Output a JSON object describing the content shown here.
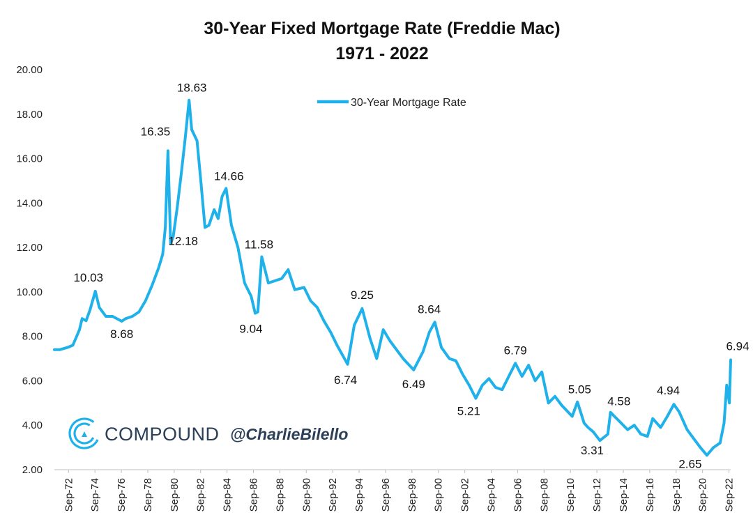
{
  "chart_data": {
    "type": "line",
    "title": "30-Year Fixed Mortgage Rate (Freddie Mac)",
    "subtitle": "1971 - 2022",
    "xlabel": "",
    "ylabel": "",
    "ylim": [
      2,
      20
    ],
    "xlim": [
      1971.6,
      2022.8
    ],
    "y_ticks": [
      "20.00",
      "18.00",
      "16.00",
      "14.00",
      "12.00",
      "10.00",
      "8.00",
      "6.00",
      "4.00",
      "2.00"
    ],
    "x_ticks": [
      "Sep-72",
      "Sep-74",
      "Sep-76",
      "Sep-78",
      "Sep-80",
      "Sep-82",
      "Sep-84",
      "Sep-86",
      "Sep-88",
      "Sep-90",
      "Sep-92",
      "Sep-94",
      "Sep-96",
      "Sep-98",
      "Sep-00",
      "Sep-02",
      "Sep-04",
      "Sep-06",
      "Sep-08",
      "Sep-10",
      "Sep-12",
      "Sep-14",
      "Sep-16",
      "Sep-18",
      "Sep-20",
      "Sep-22"
    ],
    "grid": false,
    "legend_position": "top-center",
    "series": [
      {
        "name": "30-Year Mortgage Rate",
        "color": "#1fb1ea",
        "x": [
          1971.6,
          1972.0,
          1972.6,
          1973.0,
          1973.5,
          1973.7,
          1974.0,
          1974.3,
          1974.7,
          1975.0,
          1975.5,
          1976.0,
          1976.7,
          1977.0,
          1977.5,
          1978.0,
          1978.5,
          1979.0,
          1979.5,
          1979.8,
          1980.0,
          1980.2,
          1980.4,
          1980.6,
          1980.9,
          1981.2,
          1981.5,
          1981.8,
          1982.0,
          1982.4,
          1982.7,
          1983.0,
          1983.3,
          1983.7,
          1984.0,
          1984.3,
          1984.6,
          1985.0,
          1985.5,
          1986.0,
          1986.5,
          1986.8,
          1987.0,
          1987.3,
          1987.8,
          1988.3,
          1988.8,
          1989.3,
          1989.8,
          1990.5,
          1991.0,
          1991.5,
          1992.0,
          1992.5,
          1993.0,
          1993.8,
          1994.3,
          1994.9,
          1995.5,
          1996.0,
          1996.5,
          1997.0,
          1997.5,
          1998.0,
          1998.8,
          1999.5,
          2000.0,
          2000.4,
          2000.9,
          2001.5,
          2002.0,
          2002.5,
          2003.0,
          2003.5,
          2004.0,
          2004.5,
          2005.0,
          2005.5,
          2006.0,
          2006.5,
          2007.0,
          2007.5,
          2008.0,
          2008.5,
          2009.0,
          2009.5,
          2010.0,
          2010.8,
          2011.2,
          2011.7,
          2012.0,
          2012.4,
          2012.9,
          2013.5,
          2013.7,
          2014.0,
          2014.5,
          2015.0,
          2015.5,
          2016.0,
          2016.5,
          2016.9,
          2017.5,
          2018.0,
          2018.5,
          2018.9,
          2019.5,
          2020.0,
          2020.5,
          2021.0,
          2021.5,
          2022.0,
          2022.3,
          2022.5,
          2022.7,
          2022.8
        ],
        "values": [
          7.4,
          7.4,
          7.5,
          7.6,
          8.3,
          8.8,
          8.7,
          9.2,
          10.03,
          9.3,
          8.9,
          8.9,
          8.68,
          8.8,
          8.9,
          9.1,
          9.6,
          10.3,
          11.1,
          11.7,
          12.9,
          16.35,
          12.18,
          12.5,
          13.8,
          15.3,
          16.9,
          18.63,
          17.3,
          16.8,
          14.9,
          12.9,
          13.0,
          13.7,
          13.3,
          14.3,
          14.66,
          13.0,
          12.0,
          10.4,
          9.8,
          9.04,
          9.1,
          11.58,
          10.4,
          10.5,
          10.6,
          11.0,
          10.1,
          10.2,
          9.6,
          9.3,
          8.7,
          8.2,
          7.6,
          6.74,
          8.5,
          9.25,
          7.9,
          7.0,
          8.3,
          7.8,
          7.4,
          7.0,
          6.49,
          7.3,
          8.2,
          8.64,
          7.5,
          7.0,
          6.9,
          6.3,
          5.8,
          5.21,
          5.8,
          6.1,
          5.7,
          5.6,
          6.2,
          6.79,
          6.2,
          6.7,
          6.0,
          6.4,
          5.0,
          5.3,
          4.9,
          4.4,
          5.05,
          4.1,
          3.9,
          3.7,
          3.31,
          3.6,
          4.58,
          4.4,
          4.1,
          3.8,
          4.0,
          3.6,
          3.5,
          4.3,
          3.9,
          4.4,
          4.94,
          4.6,
          3.8,
          3.4,
          3.0,
          2.65,
          3.0,
          3.2,
          4.1,
          5.8,
          5.0,
          6.94
        ]
      }
    ],
    "annotations": [
      {
        "text": "10.03",
        "x": 1974.7,
        "y": 10.03
      },
      {
        "text": "8.68",
        "x": 1976.7,
        "y": 8.68
      },
      {
        "text": "16.35",
        "x": 1980.2,
        "y": 16.35
      },
      {
        "text": "12.18",
        "x": 1980.4,
        "y": 12.18
      },
      {
        "text": "18.63",
        "x": 1981.8,
        "y": 18.63
      },
      {
        "text": "14.66",
        "x": 1984.6,
        "y": 14.66
      },
      {
        "text": "11.58",
        "x": 1987.3,
        "y": 11.58
      },
      {
        "text": "9.04",
        "x": 1986.8,
        "y": 9.04
      },
      {
        "text": "9.25",
        "x": 1994.9,
        "y": 9.25
      },
      {
        "text": "6.74",
        "x": 1993.8,
        "y": 6.74
      },
      {
        "text": "8.64",
        "x": 2000.4,
        "y": 8.64
      },
      {
        "text": "6.49",
        "x": 1998.8,
        "y": 6.49
      },
      {
        "text": "5.21",
        "x": 2003.5,
        "y": 5.21
      },
      {
        "text": "6.79",
        "x": 2006.5,
        "y": 6.79
      },
      {
        "text": "5.05",
        "x": 2011.2,
        "y": 5.05
      },
      {
        "text": "4.58",
        "x": 2013.5,
        "y": 4.58
      },
      {
        "text": "3.31",
        "x": 2012.9,
        "y": 3.31
      },
      {
        "text": "4.94",
        "x": 2018.5,
        "y": 4.94
      },
      {
        "text": "2.65",
        "x": 2021.0,
        "y": 2.65
      },
      {
        "text": "6.94",
        "x": 2022.8,
        "y": 6.94
      }
    ]
  },
  "branding": {
    "brand": "COMPOUND",
    "handle": "@CharlieBilello",
    "logo_icon": "compound-c-logo-icon",
    "logo_color": "#1fb1ea"
  }
}
